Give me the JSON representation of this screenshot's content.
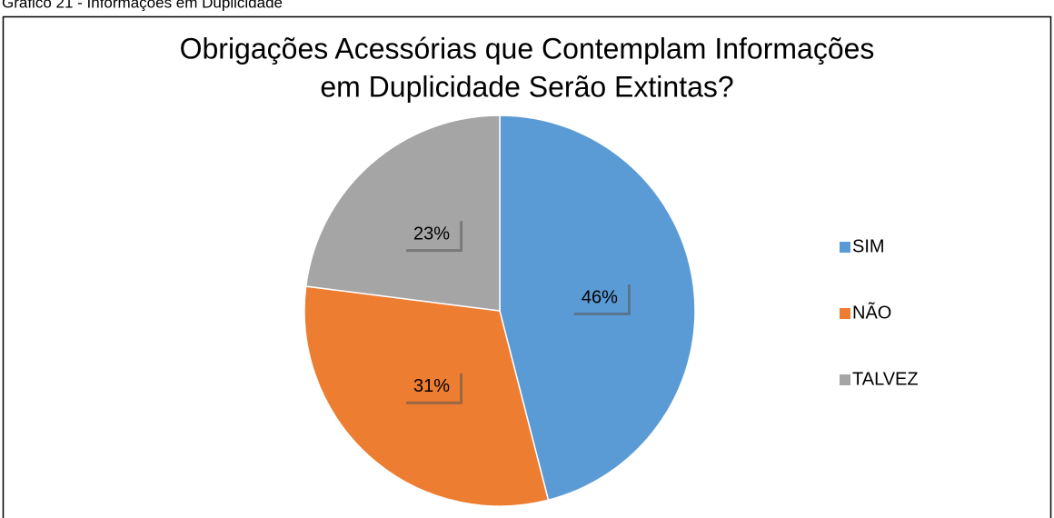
{
  "caption": "Gráfico 21 - Informações em Duplicidade",
  "chart_data": {
    "type": "pie",
    "title": [
      "Obrigações Acessórias que Contemplam Informações",
      "em Duplicidade Serão Extintas?"
    ],
    "categories": [
      "SIM",
      "NÃO",
      "TALVEZ"
    ],
    "values": [
      46,
      31,
      23
    ],
    "value_labels": [
      "46%",
      "31%",
      "23%"
    ],
    "colors": [
      "#5b9bd5",
      "#ed7d31",
      "#a5a5a5"
    ],
    "legend": "right"
  }
}
